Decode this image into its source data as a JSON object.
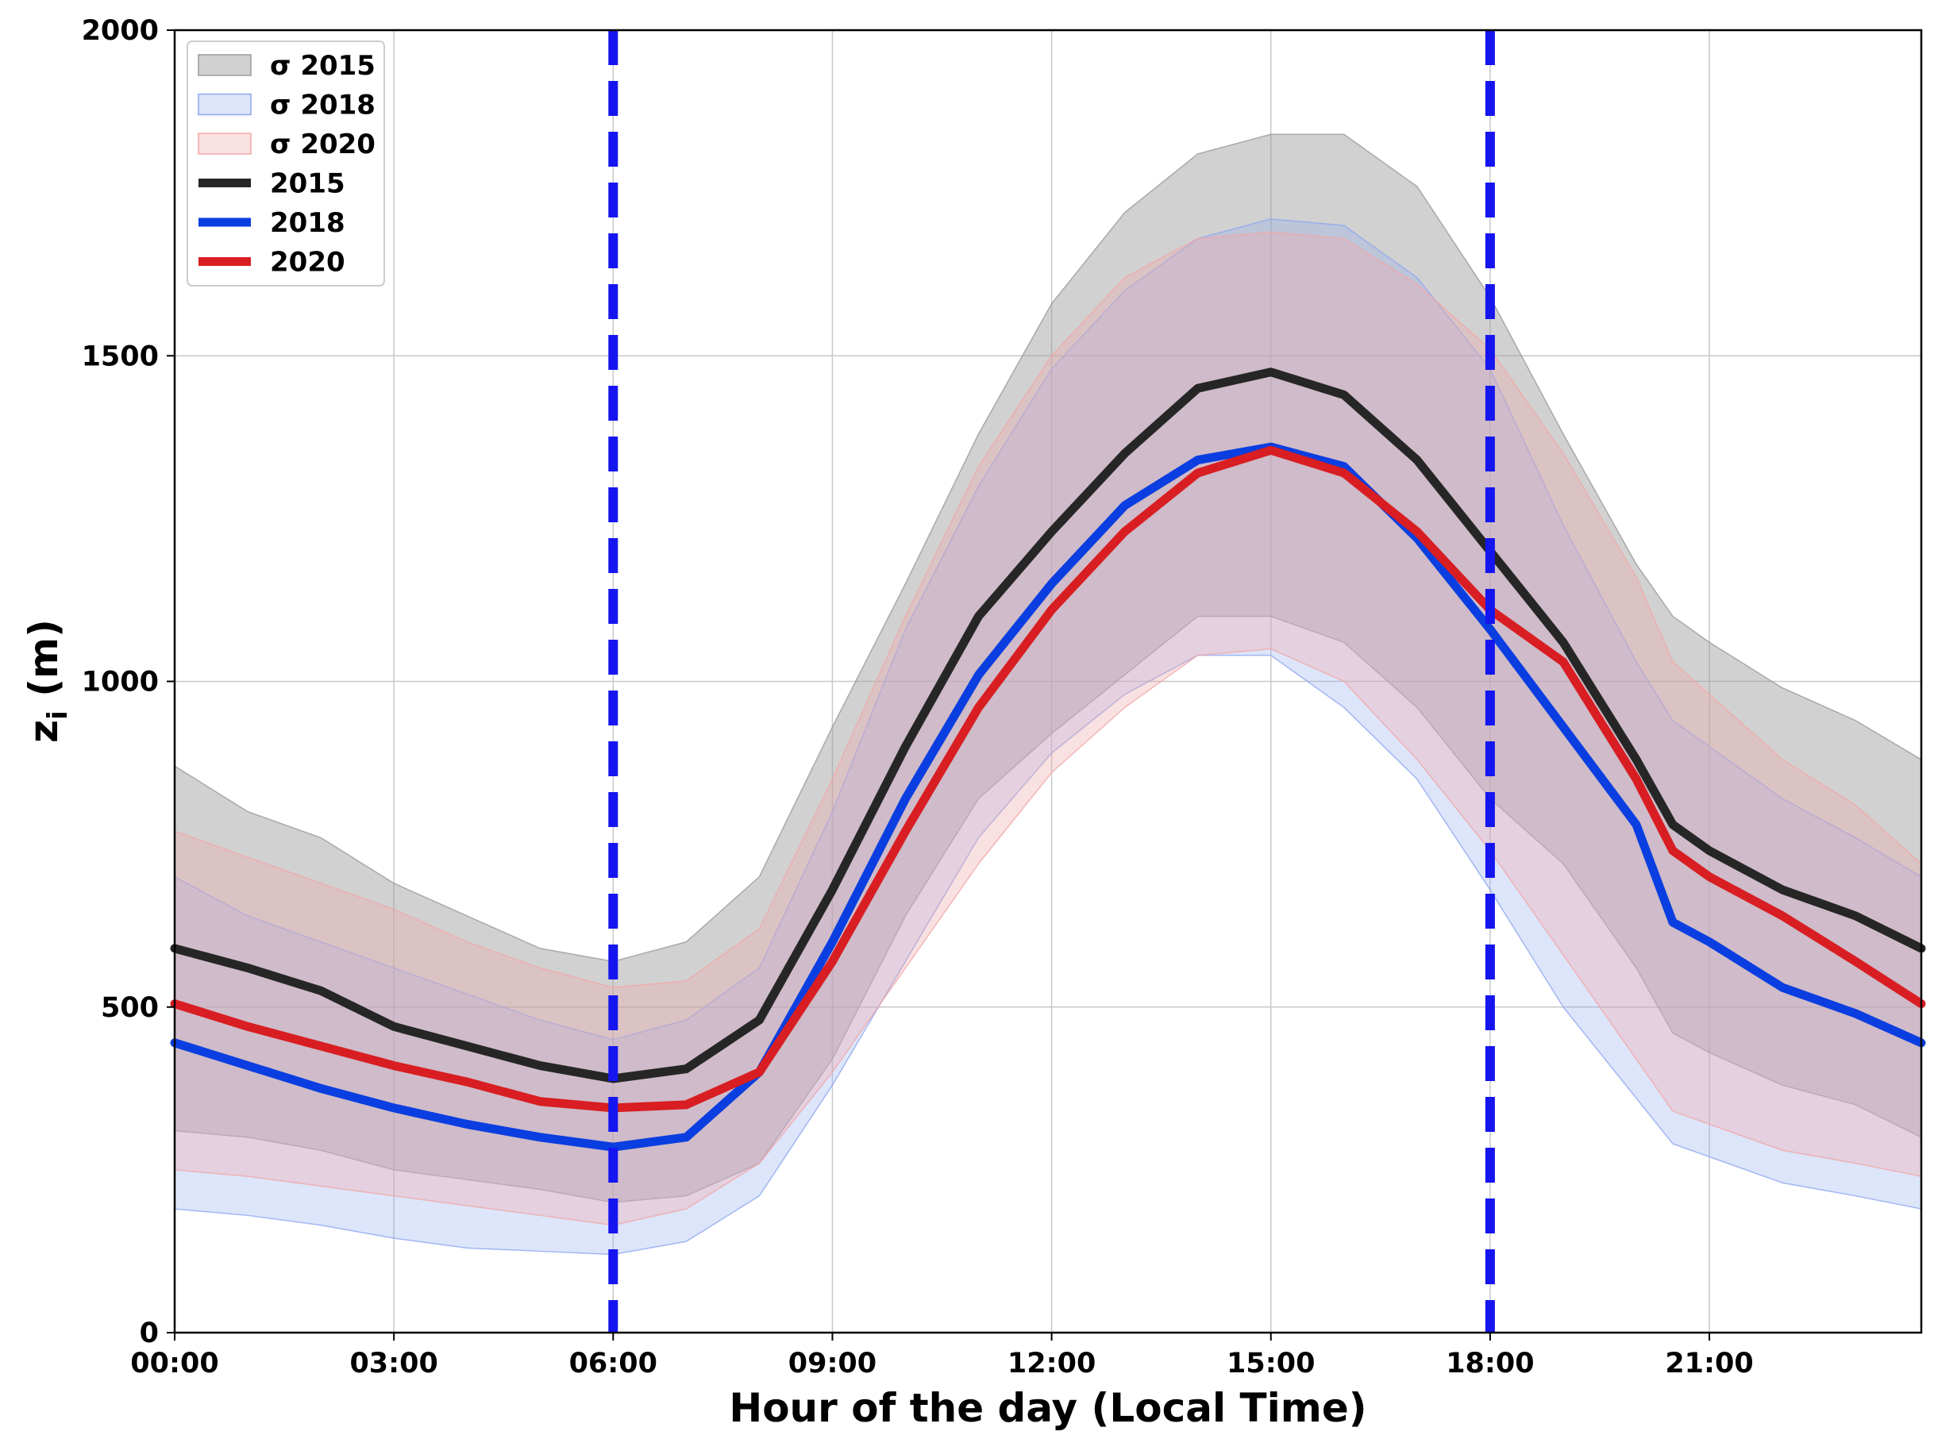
{
  "chart_data": {
    "type": "line",
    "title": "",
    "xlabel": "Hour of the day (Local Time)",
    "ylabel_main": "z",
    "ylabel_sub": "i",
    "ylabel_unit": " (m)",
    "xlim": [
      0,
      23.9
    ],
    "ylim": [
      0,
      2000
    ],
    "grid": true,
    "legend_position": "upper-left",
    "x_ticks": [
      {
        "value": 0,
        "label": "00:00"
      },
      {
        "value": 3,
        "label": "03:00"
      },
      {
        "value": 6,
        "label": "06:00"
      },
      {
        "value": 9,
        "label": "09:00"
      },
      {
        "value": 12,
        "label": "12:00"
      },
      {
        "value": 15,
        "label": "15:00"
      },
      {
        "value": 18,
        "label": "18:00"
      },
      {
        "value": 21,
        "label": "21:00"
      }
    ],
    "y_ticks": [
      {
        "value": 0,
        "label": "0"
      },
      {
        "value": 500,
        "label": "500"
      },
      {
        "value": 1000,
        "label": "1000"
      },
      {
        "value": 1500,
        "label": "1500"
      },
      {
        "value": 2000,
        "label": "2000"
      }
    ],
    "vlines": [
      6,
      18
    ],
    "vline_color": "#1515f0",
    "x": [
      0,
      1,
      2,
      3,
      4,
      5,
      6,
      7,
      8,
      9,
      10,
      11,
      12,
      13,
      14,
      15,
      16,
      17,
      18,
      19,
      20,
      20.5,
      21,
      22,
      23,
      23.9
    ],
    "series": [
      {
        "name": "2015",
        "legend_label": "2015",
        "band_label": "σ 2015",
        "color": "#262626",
        "band_color": "#9a9a9a",
        "band_opacity": 0.45,
        "values": [
          590,
          560,
          525,
          470,
          440,
          410,
          390,
          405,
          480,
          680,
          900,
          1100,
          1230,
          1350,
          1450,
          1475,
          1440,
          1340,
          1200,
          1060,
          880,
          780,
          740,
          680,
          640,
          590
        ],
        "upper": [
          870,
          800,
          760,
          690,
          640,
          590,
          570,
          600,
          700,
          930,
          1150,
          1380,
          1580,
          1720,
          1810,
          1840,
          1840,
          1760,
          1590,
          1380,
          1180,
          1100,
          1060,
          990,
          940,
          880
        ],
        "lower": [
          310,
          300,
          280,
          250,
          235,
          220,
          200,
          210,
          260,
          420,
          640,
          820,
          920,
          1010,
          1100,
          1100,
          1060,
          960,
          820,
          720,
          560,
          460,
          430,
          380,
          350,
          300
        ]
      },
      {
        "name": "2018",
        "legend_label": "2018",
        "band_label": "σ 2018",
        "color": "#0a3ee0",
        "band_color": "#8fa8ef",
        "band_opacity": 0.3,
        "values": [
          445,
          410,
          375,
          345,
          320,
          300,
          285,
          300,
          400,
          600,
          820,
          1010,
          1150,
          1270,
          1340,
          1360,
          1330,
          1220,
          1080,
          930,
          780,
          630,
          600,
          530,
          490,
          445
        ],
        "upper": [
          700,
          640,
          600,
          560,
          520,
          480,
          450,
          480,
          560,
          800,
          1080,
          1300,
          1480,
          1600,
          1680,
          1710,
          1700,
          1620,
          1480,
          1240,
          1030,
          940,
          900,
          820,
          760,
          700
        ],
        "lower": [
          190,
          180,
          165,
          145,
          130,
          125,
          120,
          140,
          210,
          380,
          570,
          760,
          890,
          980,
          1040,
          1040,
          960,
          850,
          680,
          500,
          360,
          290,
          270,
          230,
          210,
          190
        ]
      },
      {
        "name": "2020",
        "legend_label": "2020",
        "band_label": "σ 2020",
        "color": "#d81e22",
        "band_color": "#f0a8a8",
        "band_opacity": 0.35,
        "values": [
          505,
          470,
          440,
          410,
          385,
          355,
          345,
          350,
          400,
          570,
          770,
          960,
          1110,
          1230,
          1320,
          1355,
          1320,
          1230,
          1110,
          1030,
          850,
          740,
          700,
          640,
          570,
          505
        ],
        "upper": [
          770,
          730,
          690,
          650,
          600,
          560,
          530,
          540,
          620,
          850,
          1100,
          1330,
          1500,
          1620,
          1680,
          1690,
          1680,
          1610,
          1510,
          1350,
          1160,
          1030,
          980,
          880,
          810,
          720
        ],
        "lower": [
          250,
          240,
          225,
          210,
          195,
          180,
          165,
          190,
          260,
          400,
          560,
          720,
          860,
          960,
          1040,
          1050,
          1000,
          880,
          740,
          580,
          420,
          340,
          320,
          280,
          260,
          240
        ]
      }
    ]
  }
}
